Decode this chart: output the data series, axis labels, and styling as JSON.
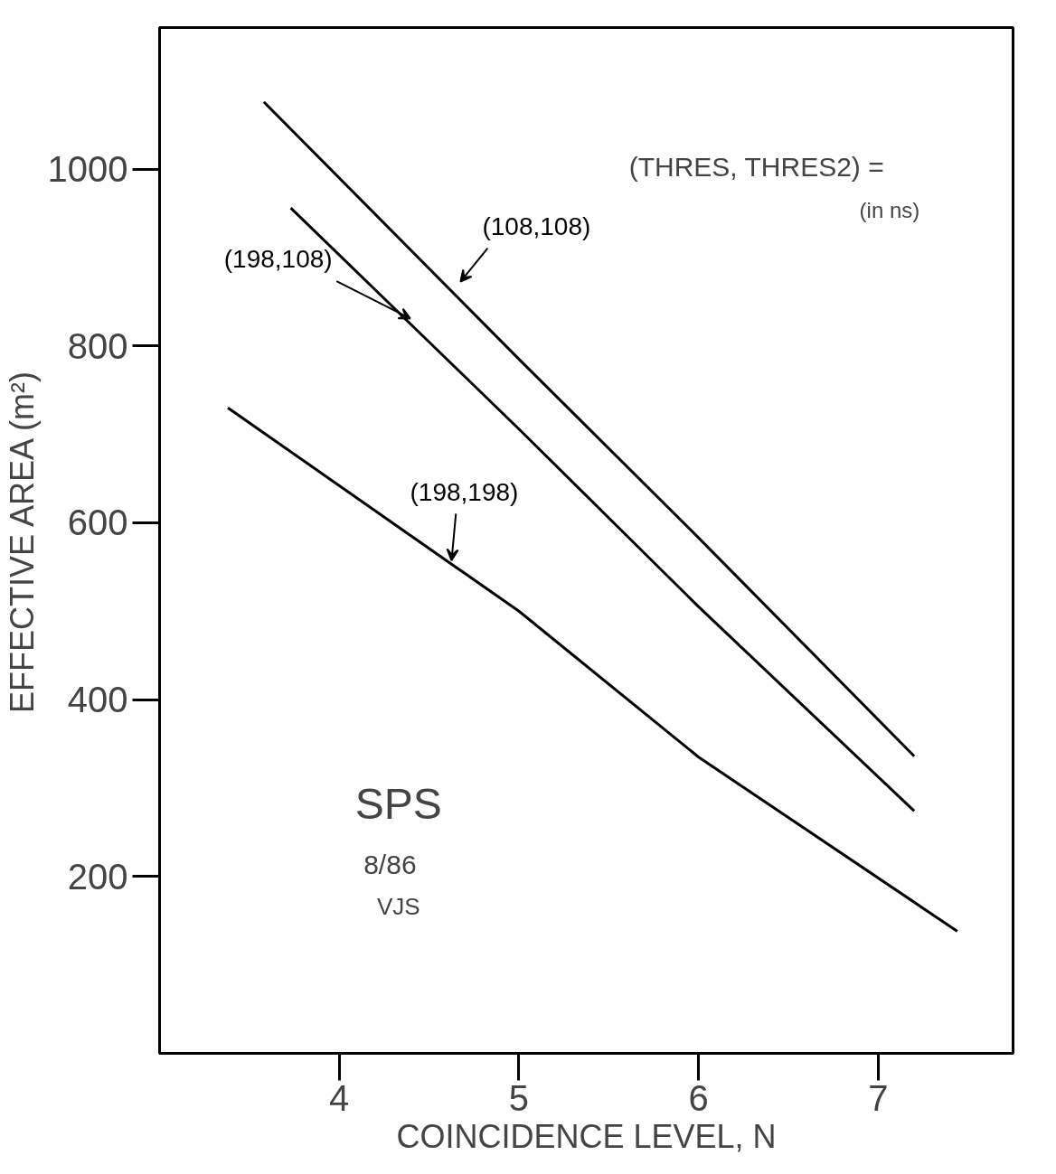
{
  "chart_data": {
    "type": "line",
    "xlabel": "COINCIDENCE LEVEL, N",
    "ylabel": "EFFECTIVE AREA (m²)",
    "xlim": [
      3,
      7.75
    ],
    "ylim": [
      0,
      1160
    ],
    "xticks": [
      4,
      5,
      6,
      7
    ],
    "yticks": [
      200,
      400,
      600,
      800,
      1000
    ],
    "grid": false,
    "marker": "none",
    "line_style": "solid",
    "series": [
      {
        "name": "(108,108)",
        "color": "#000000",
        "x": [
          3.58,
          5,
          6,
          7.2
        ],
        "values": [
          1076,
          785,
          583,
          336
        ]
      },
      {
        "name": "(198,108)",
        "color": "#000000",
        "x": [
          3.73,
          5,
          6,
          7.2
        ],
        "values": [
          956,
          706,
          505,
          274
        ]
      },
      {
        "name": "(198,198)",
        "color": "#000000",
        "x": [
          3.38,
          5,
          6,
          7.44
        ],
        "values": [
          730,
          500,
          335,
          138
        ]
      }
    ],
    "annotations": [
      "(THRES, THRES2) =",
      "(in ns)",
      "SPS",
      "8/86",
      "VJS"
    ]
  }
}
